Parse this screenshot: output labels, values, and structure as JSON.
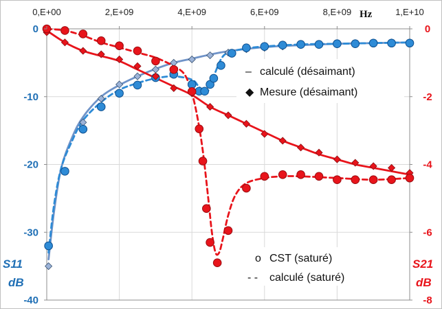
{
  "chart_data": {
    "type": "line",
    "x_axis": {
      "unit_label": "Hz",
      "range": [
        0,
        10000000000
      ],
      "ticks": [
        0,
        2000000000,
        4000000000,
        6000000000,
        8000000000,
        10000000000
      ],
      "tick_labels": [
        "0,E+00",
        "2,E+09",
        "4,E+09",
        "6,E+09",
        "8,E+09",
        "1,E+10"
      ],
      "position": "top"
    },
    "y_left": {
      "label_line1": "S11",
      "label_line2": "dB",
      "range": [
        -40,
        0
      ],
      "ticks": [
        0,
        -10,
        -20,
        -30,
        -40
      ],
      "tick_labels": [
        "0",
        "-10",
        "-20",
        "-30",
        "-40"
      ],
      "color": "#1f6fb5"
    },
    "y_right": {
      "label_line1": "S21",
      "label_line2": "dB",
      "range": [
        -8,
        0
      ],
      "ticks": [
        0,
        -2,
        -4,
        -6,
        -8
      ],
      "tick_labels": [
        "0",
        "-2",
        "-4",
        "-6",
        "-8"
      ],
      "color": "#e8141b"
    },
    "grid": true,
    "legend": [
      {
        "symbol": "–",
        "text": "calculé (désaimant)"
      },
      {
        "symbol": "◆",
        "text": "Mesure (désaimant)"
      },
      {
        "symbol": "o",
        "text": "CST (saturé)"
      },
      {
        "symbol": "- -",
        "text": "calculé (saturé)"
      }
    ],
    "series": [
      {
        "axis": "left",
        "kind": "line",
        "style": "solid",
        "color": "#6f93c8",
        "x": [
          50000000,
          200000000,
          400000000,
          700000000,
          1000000000,
          1500000000,
          2000000000,
          2500000000,
          3000000000,
          3500000000,
          4000000000,
          4500000000,
          5000000000,
          6000000000,
          7000000000,
          8000000000,
          9000000000,
          10000000000
        ],
        "y": [
          -34,
          -27,
          -20.5,
          -16,
          -13,
          -10,
          -8.3,
          -7,
          -5.9,
          -5,
          -4.4,
          -3.8,
          -3.3,
          -2.7,
          -2.4,
          -2.2,
          -2.1,
          -2
        ]
      },
      {
        "axis": "left",
        "kind": "markers",
        "marker": "diamond",
        "color": "#9cb3d8",
        "x": [
          50000000,
          500000000,
          1000000000,
          1500000000,
          2000000000,
          2500000000,
          3000000000,
          3500000000,
          4000000000,
          4500000000,
          5000000000,
          5500000000,
          6000000000,
          6500000000,
          7000000000,
          7500000000,
          8000000000,
          8500000000,
          9000000000,
          9500000000,
          10000000000
        ],
        "y": [
          -35,
          -21,
          -13.8,
          -10.3,
          -8.2,
          -7,
          -6,
          -5,
          -4.5,
          -3.9,
          -3.5,
          -3,
          -2.8,
          -2.6,
          -2.4,
          -2.3,
          -2.2,
          -2.1,
          -2.1,
          -2,
          -2
        ]
      },
      {
        "axis": "left",
        "kind": "line",
        "style": "dashed",
        "color": "#2e8bd6",
        "x": [
          50000000,
          200000000,
          400000000,
          700000000,
          1000000000,
          1500000000,
          2000000000,
          2500000000,
          3000000000,
          3500000000,
          4000000000,
          4200000000,
          4400000000,
          4600000000,
          4800000000,
          5000000000,
          5500000000,
          6000000000,
          7000000000,
          8000000000,
          9000000000,
          10000000000
        ],
        "y": [
          -33,
          -26,
          -20.5,
          -16.5,
          -13.5,
          -10.8,
          -9,
          -8,
          -7.3,
          -7,
          -7.5,
          -8.6,
          -9.5,
          -7,
          -4.5,
          -3.5,
          -2.9,
          -2.6,
          -2.3,
          -2.2,
          -2.1,
          -2
        ]
      },
      {
        "axis": "left",
        "kind": "markers",
        "marker": "circle",
        "color": "#2e8bd6",
        "x": [
          50000000,
          500000000,
          1000000000,
          1500000000,
          2000000000,
          2500000000,
          3000000000,
          3500000000,
          4000000000,
          4200000000,
          4350000000,
          4500000000,
          4600000000,
          4800000000,
          5100000000,
          5500000000,
          6000000000,
          6500000000,
          7000000000,
          7500000000,
          8000000000,
          8500000000,
          9000000000,
          9500000000,
          10000000000
        ],
        "y": [
          -32,
          -21,
          -14.8,
          -11.5,
          -9.5,
          -8.3,
          -7.2,
          -6.7,
          -8.2,
          -9.2,
          -9.2,
          -8.2,
          -7.3,
          -5.4,
          -3.6,
          -2.8,
          -2.6,
          -2.4,
          -2.3,
          -2.3,
          -2.2,
          -2.2,
          -2.1,
          -2.1,
          -2.1
        ]
      },
      {
        "axis": "right",
        "kind": "line",
        "style": "solid",
        "color": "#e8141b",
        "x": [
          0,
          500000000,
          1000000000,
          1500000000,
          2000000000,
          2500000000,
          3000000000,
          3500000000,
          4000000000,
          4500000000,
          5000000000,
          5500000000,
          6000000000,
          6500000000,
          7000000000,
          7500000000,
          8000000000,
          8500000000,
          9000000000,
          9500000000,
          10000000000
        ],
        "y": [
          -0.05,
          -0.4,
          -0.65,
          -0.8,
          -0.95,
          -1.2,
          -1.45,
          -1.7,
          -1.95,
          -2.3,
          -2.55,
          -2.8,
          -3.05,
          -3.3,
          -3.5,
          -3.7,
          -3.85,
          -4,
          -4.1,
          -4.2,
          -4.3
        ]
      },
      {
        "axis": "right",
        "kind": "markers",
        "marker": "diamond",
        "color": "#e8141b",
        "x": [
          0,
          500000000,
          1000000000,
          1500000000,
          2000000000,
          2500000000,
          3000000000,
          3500000000,
          4000000000,
          4500000000,
          5000000000,
          5500000000,
          6000000000,
          6500000000,
          7000000000,
          7500000000,
          8000000000,
          8500000000,
          9000000000,
          9500000000,
          10000000000
        ],
        "y": [
          -0.1,
          -0.4,
          -0.65,
          -0.75,
          -0.9,
          -1.1,
          -1.4,
          -1.75,
          -1.9,
          -2.3,
          -2.55,
          -2.8,
          -3.1,
          -3.3,
          -3.5,
          -3.65,
          -3.85,
          -3.95,
          -4.05,
          -4.1,
          -4.25
        ]
      },
      {
        "axis": "right",
        "kind": "line",
        "style": "dashed",
        "color": "#e8141b",
        "x": [
          0,
          500000000,
          1000000000,
          1500000000,
          2000000000,
          2500000000,
          3000000000,
          3500000000,
          3800000000,
          4000000000,
          4150000000,
          4300000000,
          4450000000,
          4550000000,
          4650000000,
          4750000000,
          4850000000,
          5000000000,
          5200000000,
          5500000000,
          6000000000,
          6500000000,
          7000000000,
          8000000000,
          9000000000,
          10000000000
        ],
        "y": [
          0,
          -0.05,
          -0.2,
          -0.4,
          -0.55,
          -0.7,
          -0.85,
          -1.1,
          -1.35,
          -1.9,
          -2.6,
          -3.6,
          -5,
          -6,
          -6.6,
          -6.6,
          -6.2,
          -5.5,
          -4.9,
          -4.55,
          -4.4,
          -4.35,
          -4.35,
          -4.4,
          -4.45,
          -4.4
        ]
      },
      {
        "axis": "right",
        "kind": "markers",
        "marker": "circle",
        "color": "#e8141b",
        "x": [
          0,
          500000000,
          1000000000,
          1500000000,
          2000000000,
          2500000000,
          3000000000,
          3500000000,
          4000000000,
          4200000000,
          4300000000,
          4400000000,
          4500000000,
          4700000000,
          5000000000,
          5500000000,
          6000000000,
          6500000000,
          7000000000,
          7500000000,
          8000000000,
          8500000000,
          9000000000,
          9500000000,
          10000000000
        ],
        "y": [
          0,
          -0.05,
          -0.15,
          -0.35,
          -0.5,
          -0.65,
          -0.95,
          -1.2,
          -1.85,
          -2.95,
          -3.9,
          -5.3,
          -6.3,
          -6.9,
          -5.95,
          -4.7,
          -4.35,
          -4.3,
          -4.3,
          -4.35,
          -4.45,
          -4.45,
          -4.45,
          -4.45,
          -4.4
        ]
      }
    ]
  }
}
